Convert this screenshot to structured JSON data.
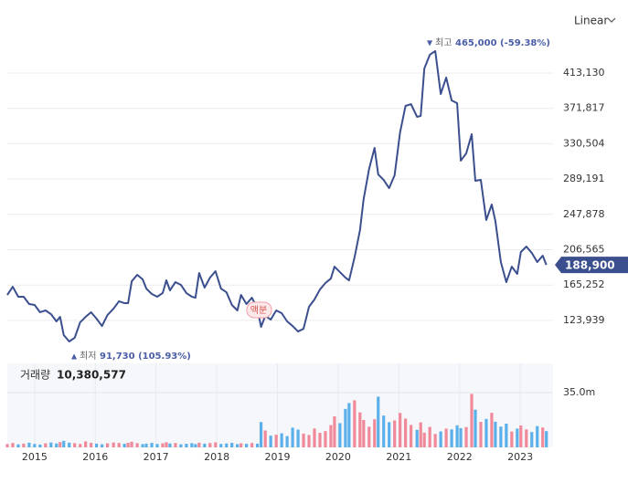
{
  "chart_data": {
    "type": "line",
    "scale_label": "Linear",
    "x": [
      2014.55,
      2014.64,
      2014.73,
      2014.82,
      2014.91,
      2015.0,
      2015.09,
      2015.18,
      2015.27,
      2015.36,
      2015.42,
      2015.48,
      2015.57,
      2015.66,
      2015.75,
      2015.84,
      2015.93,
      2016.02,
      2016.11,
      2016.2,
      2016.3,
      2016.39,
      2016.48,
      2016.54,
      2016.6,
      2016.69,
      2016.78,
      2016.84,
      2016.93,
      2017.02,
      2017.11,
      2017.17,
      2017.23,
      2017.32,
      2017.41,
      2017.5,
      2017.59,
      2017.65,
      2017.71,
      2017.8,
      2017.89,
      2017.98,
      2018.07,
      2018.16,
      2018.25,
      2018.34,
      2018.4,
      2018.49,
      2018.58,
      2018.67,
      2018.73,
      2018.8,
      2018.89,
      2018.98,
      2019.07,
      2019.16,
      2019.25,
      2019.34,
      2019.43,
      2019.52,
      2019.61,
      2019.7,
      2019.79,
      2019.88,
      2019.94,
      2020.03,
      2020.12,
      2020.18,
      2020.27,
      2020.36,
      2020.42,
      2020.51,
      2020.6,
      2020.66,
      2020.75,
      2020.84,
      2020.93,
      2021.02,
      2021.11,
      2021.2,
      2021.3,
      2021.36,
      2021.42,
      2021.51,
      2021.6,
      2021.69,
      2021.78,
      2021.87,
      2021.96,
      2022.02,
      2022.11,
      2022.2,
      2022.26,
      2022.35,
      2022.44,
      2022.53,
      2022.59,
      2022.68,
      2022.77,
      2022.86,
      2022.95,
      2023.01,
      2023.1,
      2023.19,
      2023.28,
      2023.37,
      2023.43
    ],
    "xlim": [
      2014.43,
      2023.54
    ],
    "xticks": [
      2015,
      2016,
      2017,
      2018,
      2019,
      2020,
      2021,
      2022,
      2023
    ],
    "ylim": [
      76900,
      498500
    ],
    "yticks": [
      {
        "value": 123939,
        "label": "123,939"
      },
      {
        "value": 165252,
        "label": "165,252"
      },
      {
        "value": 206565,
        "label": "206,565"
      },
      {
        "value": 247878,
        "label": "247,878"
      },
      {
        "value": 289191,
        "label": "289,191"
      },
      {
        "value": 330504,
        "label": "330,504"
      },
      {
        "value": 371817,
        "label": "371,817"
      },
      {
        "value": 413130,
        "label": "413,130"
      }
    ],
    "y2lim": [
      0,
      52500000
    ],
    "y2ticks": [
      {
        "value": 35000000,
        "label": "35.0m"
      }
    ],
    "grid": true,
    "series": [
      {
        "color": "#3b4f8f",
        "last_label": "188,900",
        "values": [
          153700,
          163300,
          151600,
          151600,
          143100,
          142000,
          133500,
          135600,
          131300,
          122800,
          128100,
          106800,
          99300,
          103600,
          121700,
          128100,
          133500,
          126000,
          117400,
          130200,
          137700,
          146300,
          144100,
          144100,
          169700,
          177200,
          171900,
          161200,
          154800,
          151600,
          155900,
          170800,
          159100,
          168700,
          165500,
          155900,
          151600,
          150500,
          179400,
          162300,
          174000,
          181500,
          161200,
          156900,
          142000,
          135600,
          153700,
          143100,
          150500,
          137700,
          116400,
          129200,
          124900,
          135600,
          132400,
          122800,
          117400,
          111000,
          114200,
          139900,
          148400,
          160100,
          167600,
          172900,
          186800,
          180400,
          174000,
          170800,
          197500,
          229500,
          265800,
          301000,
          325600,
          294600,
          288200,
          278600,
          293600,
          343700,
          374700,
          376800,
          361900,
          363000,
          418500,
          434500,
          438800,
          388600,
          407800,
          381100,
          377900,
          310700,
          319200,
          341600,
          287200,
          288200,
          241300,
          259400,
          240200,
          192200,
          168700,
          186800,
          178300,
          203900,
          210300,
          202800,
          192200,
          199600,
          188900
        ]
      },
      {
        "name": "거래량",
        "type": "bar",
        "axis": "y2",
        "up_color": "#f0899a",
        "down_color": "#5cb0ea",
        "value_label": "10,380,577",
        "values": [
          2100000,
          2800000,
          1900000,
          2400000,
          3000000,
          2200000,
          1800000,
          2600000,
          3100000,
          2500000,
          3400000,
          4200000,
          3000000,
          2700000,
          2200000,
          3800000,
          2900000,
          2400000,
          2000000,
          2600000,
          3100000,
          2800000,
          2300000,
          2900000,
          3600000,
          2700000,
          2100000,
          2400000,
          2900000,
          2200000,
          2600000,
          3300000,
          2500000,
          2800000,
          2000000,
          2300000,
          2700000,
          2100000,
          3000000,
          2400000,
          2800000,
          3200000,
          2200000,
          2500000,
          2900000,
          2100000,
          2600000,
          2300000,
          2800000,
          2400000,
          16200000,
          10800000,
          7500000,
          8100000,
          9000000,
          7200000,
          12600000,
          11400000,
          8800000,
          7900000,
          12100000,
          9300000,
          10400000,
          14200000,
          19800000,
          15500000,
          24600000,
          28300000,
          30100000,
          22400000,
          17500000,
          13200000,
          18000000,
          32400000,
          20300000,
          16100000,
          17200000,
          22000000,
          18400000,
          14300000,
          11200000,
          16000000,
          9400000,
          13100000,
          8600000,
          10200000,
          12000000,
          11500000,
          14100000,
          12300000,
          13000000,
          34200000,
          24100000,
          16300000,
          18200000,
          22100000,
          16400000,
          13300000,
          15200000,
          10100000,
          12000000,
          14000000,
          11500000,
          9800000,
          13600000,
          12700000,
          10380577
        ]
      }
    ],
    "annotations": [
      {
        "label": "최고",
        "text": "465,000 (-59.38%)"
      },
      {
        "label": "최저",
        "text": "91,730 (105.93%)"
      },
      {
        "text": "액분"
      }
    ]
  }
}
